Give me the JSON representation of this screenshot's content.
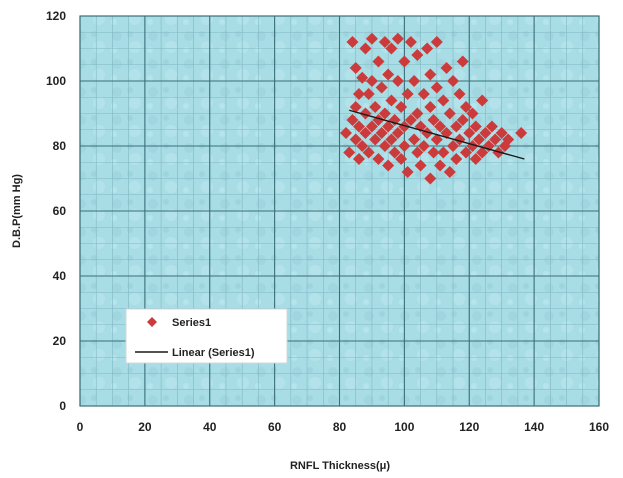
{
  "chart_data": {
    "type": "scatter",
    "xlabel": "RNFL Thickness(μ)",
    "ylabel": "D.B.P(mm Hg)",
    "xlim": [
      0,
      160
    ],
    "ylim": [
      0,
      120
    ],
    "xticks": [
      0,
      20,
      40,
      60,
      80,
      100,
      120,
      140,
      160
    ],
    "yticks": [
      0,
      20,
      40,
      60,
      80,
      100,
      120
    ],
    "grid": true,
    "legend_position": "bottom-left",
    "plot_background": "#a9dde6",
    "grid_color": "#3a6f78",
    "series": [
      {
        "name": "Series1",
        "marker": "diamond",
        "color": "#cc3b3b",
        "points": [
          [
            82,
            84
          ],
          [
            83,
            78
          ],
          [
            84,
            88
          ],
          [
            84,
            112
          ],
          [
            85,
            92
          ],
          [
            85,
            82
          ],
          [
            85,
            104
          ],
          [
            86,
            76
          ],
          [
            86,
            96
          ],
          [
            86,
            86
          ],
          [
            87,
            101
          ],
          [
            87,
            80
          ],
          [
            88,
            90
          ],
          [
            88,
            110
          ],
          [
            88,
            84
          ],
          [
            89,
            96
          ],
          [
            89,
            78
          ],
          [
            90,
            86
          ],
          [
            90,
            113
          ],
          [
            90,
            100
          ],
          [
            91,
            82
          ],
          [
            91,
            92
          ],
          [
            92,
            76
          ],
          [
            92,
            106
          ],
          [
            92,
            88
          ],
          [
            93,
            84
          ],
          [
            93,
            98
          ],
          [
            94,
            80
          ],
          [
            94,
            112
          ],
          [
            94,
            90
          ],
          [
            95,
            74
          ],
          [
            95,
            86
          ],
          [
            95,
            102
          ],
          [
            96,
            94
          ],
          [
            96,
            82
          ],
          [
            96,
            110
          ],
          [
            97,
            78
          ],
          [
            97,
            88
          ],
          [
            98,
            100
          ],
          [
            98,
            84
          ],
          [
            98,
            113
          ],
          [
            99,
            76
          ],
          [
            99,
            92
          ],
          [
            100,
            86
          ],
          [
            100,
            106
          ],
          [
            100,
            80
          ],
          [
            101,
            96
          ],
          [
            101,
            72
          ],
          [
            102,
            88
          ],
          [
            102,
            112
          ],
          [
            103,
            82
          ],
          [
            103,
            100
          ],
          [
            104,
            78
          ],
          [
            104,
            90
          ],
          [
            104,
            108
          ],
          [
            105,
            74
          ],
          [
            105,
            86
          ],
          [
            106,
            96
          ],
          [
            106,
            80
          ],
          [
            107,
            110
          ],
          [
            107,
            84
          ],
          [
            108,
            70
          ],
          [
            108,
            92
          ],
          [
            108,
            102
          ],
          [
            109,
            78
          ],
          [
            109,
            88
          ],
          [
            110,
            98
          ],
          [
            110,
            82
          ],
          [
            110,
            112
          ],
          [
            111,
            74
          ],
          [
            111,
            86
          ],
          [
            112,
            94
          ],
          [
            112,
            78
          ],
          [
            113,
            104
          ],
          [
            113,
            84
          ],
          [
            114,
            72
          ],
          [
            114,
            90
          ],
          [
            115,
            80
          ],
          [
            115,
            100
          ],
          [
            116,
            86
          ],
          [
            116,
            76
          ],
          [
            117,
            96
          ],
          [
            117,
            82
          ],
          [
            118,
            88
          ],
          [
            118,
            106
          ],
          [
            119,
            78
          ],
          [
            119,
            92
          ],
          [
            120,
            84
          ],
          [
            121,
            80
          ],
          [
            121,
            90
          ],
          [
            122,
            86
          ],
          [
            122,
            76
          ],
          [
            123,
            82
          ],
          [
            124,
            94
          ],
          [
            124,
            78
          ],
          [
            125,
            84
          ],
          [
            126,
            80
          ],
          [
            127,
            86
          ],
          [
            128,
            82
          ],
          [
            129,
            78
          ],
          [
            130,
            84
          ],
          [
            131,
            80
          ],
          [
            132,
            82
          ],
          [
            136,
            84
          ]
        ]
      }
    ],
    "trendline": {
      "name": "Linear (Series1)",
      "color": "#1a1a1a",
      "x": [
        83,
        137
      ],
      "y": [
        91,
        76
      ]
    }
  }
}
